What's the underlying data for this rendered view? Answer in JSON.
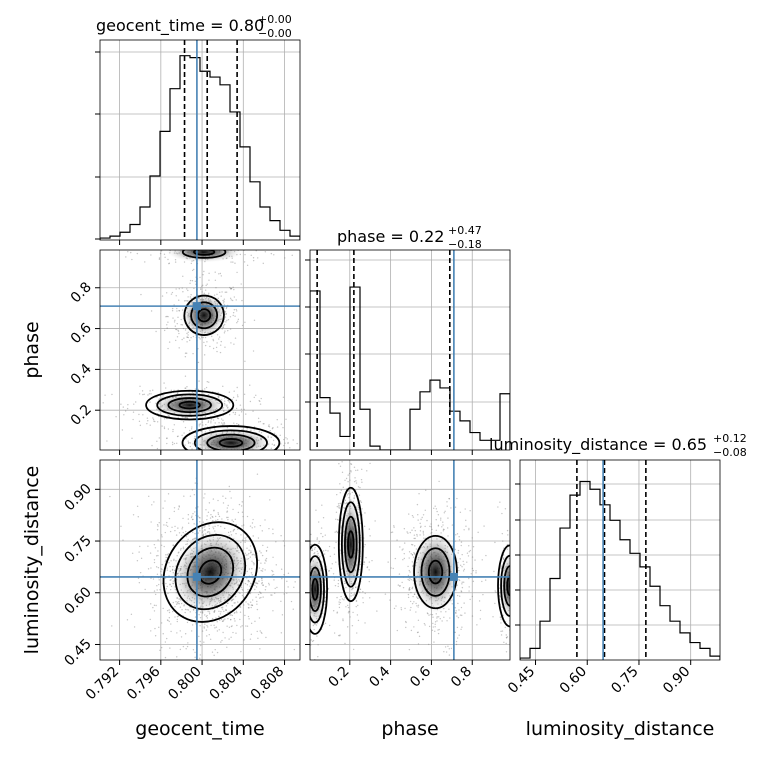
{
  "chart_data": {
    "type": "corner",
    "parameters": [
      "geocent_time",
      "phase",
      "luminosity_distance"
    ],
    "truths": {
      "geocent_time": 0.7995,
      "phase": 0.71,
      "luminosity_distance": 0.646
    },
    "colors": {
      "truth": "#4682b4",
      "hist": "#000000",
      "grid": "#b0b0b0"
    },
    "ranges": {
      "geocent_time": [
        0.7901,
        0.8095
      ],
      "phase": [
        0.005,
        0.985
      ],
      "luminosity_distance": [
        0.405,
        0.985
      ]
    },
    "ticks": {
      "geocent_time": [
        0.792,
        0.796,
        0.8,
        0.804,
        0.808
      ],
      "geocent_time_labels": [
        "0.792",
        "0.796",
        "0.800",
        "0.804",
        "0.808"
      ],
      "phase_x": [
        0.2,
        0.4,
        0.6,
        0.8
      ],
      "phase_x_labels": [
        "0.2",
        "0.4",
        "0.6",
        "0.8"
      ],
      "phase_y": [
        0.2,
        0.4,
        0.6,
        0.8
      ],
      "phase_y_labels": [
        "0.2",
        "0.4",
        "0.6",
        "0.8"
      ],
      "luminosity_distance": [
        0.45,
        0.6,
        0.75,
        0.9
      ],
      "luminosity_distance_labels": [
        "0.45",
        "0.60",
        "0.75",
        "0.90"
      ]
    },
    "titles": {
      "geocent_time": {
        "label": "geocent_time = 0.80",
        "sup": "+0.00",
        "sub": "−0.00"
      },
      "phase": {
        "label": "phase = 0.22",
        "sup": "+0.47",
        "sub": "−0.18"
      },
      "luminosity_distance": {
        "label": "luminosity_distance = 0.65",
        "sup": "+0.12",
        "sub": "−0.08"
      }
    },
    "quantiles": {
      "geocent_time": [
        0.7983,
        0.8005,
        0.8034
      ],
      "phase": [
        0.04,
        0.22,
        0.69
      ],
      "luminosity_distance": [
        0.57,
        0.65,
        0.77
      ]
    },
    "histograms": {
      "geocent_time": {
        "edges": [
          0.7901,
          0.79107,
          0.79204,
          0.79301,
          0.79398,
          0.79495,
          0.79592,
          0.79689,
          0.79786,
          0.79883,
          0.7998,
          0.80077,
          0.80174,
          0.80271,
          0.80368,
          0.80465,
          0.80562,
          0.80659,
          0.80756,
          0.80853,
          0.8095
        ],
        "counts": [
          0.01,
          0.02,
          0.04,
          0.08,
          0.17,
          0.33,
          0.56,
          0.78,
          0.95,
          0.94,
          0.87,
          0.84,
          0.8,
          0.66,
          0.48,
          0.3,
          0.17,
          0.1,
          0.05,
          0.02
        ]
      },
      "phase": {
        "edges": [
          0.005,
          0.054,
          0.103,
          0.152,
          0.201,
          0.25,
          0.299,
          0.348,
          0.397,
          0.446,
          0.495,
          0.544,
          0.593,
          0.642,
          0.691,
          0.74,
          0.789,
          0.838,
          0.887,
          0.936,
          0.985
        ],
        "counts": [
          0.82,
          0.27,
          0.19,
          0.07,
          0.84,
          0.21,
          0.02,
          0.0,
          0.0,
          0.0,
          0.21,
          0.3,
          0.36,
          0.32,
          0.2,
          0.15,
          0.09,
          0.05,
          0.05,
          0.29
        ]
      },
      "luminosity_distance": {
        "edges": [
          0.405,
          0.434,
          0.463,
          0.492,
          0.521,
          0.55,
          0.579,
          0.608,
          0.637,
          0.666,
          0.695,
          0.724,
          0.753,
          0.782,
          0.811,
          0.84,
          0.869,
          0.898,
          0.927,
          0.956,
          0.985
        ],
        "counts": [
          0.01,
          0.06,
          0.2,
          0.42,
          0.68,
          0.85,
          0.92,
          0.88,
          0.8,
          0.72,
          0.62,
          0.55,
          0.48,
          0.38,
          0.28,
          0.2,
          0.14,
          0.09,
          0.06,
          0.02
        ]
      }
    }
  }
}
